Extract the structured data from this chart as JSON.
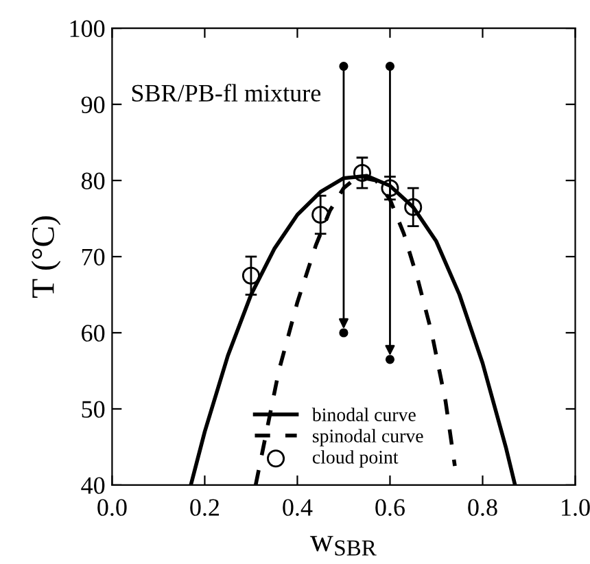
{
  "chart_data": {
    "type": "line",
    "xlabel": "w$_{SBR}$",
    "ylabel": "T (°C)",
    "xlim": [
      0.0,
      1.0
    ],
    "ylim": [
      40,
      100
    ],
    "xticks": [
      {
        "value": 0,
        "label": "0.0"
      },
      {
        "value": 0.2,
        "label": "0.2"
      },
      {
        "value": 0.4,
        "label": "0.4"
      },
      {
        "value": 0.6,
        "label": "0.6"
      },
      {
        "value": 0.8,
        "label": "0.8"
      },
      {
        "value": 1,
        "label": "1.0"
      }
    ],
    "yticks": [
      40,
      50,
      60,
      70,
      80,
      90,
      100
    ],
    "grid": false,
    "legend": "bottom",
    "annotations": [
      "SBR/PB-fl mixture"
    ],
    "series": [
      {
        "name": "binodal curve",
        "line_style": "solid",
        "marker": "none",
        "color": "#000000",
        "x": [
          0.17,
          0.2,
          0.25,
          0.3,
          0.35,
          0.4,
          0.45,
          0.5,
          0.55,
          0.6,
          0.65,
          0.7,
          0.75,
          0.8,
          0.85,
          0.87
        ],
        "values": [
          40,
          47,
          57,
          65,
          71,
          75.5,
          78.5,
          80.3,
          80.6,
          79.3,
          76.5,
          72,
          65,
          56,
          45,
          40
        ]
      },
      {
        "name": "spinodal curve",
        "line_style": "dashed",
        "marker": "none",
        "color": "#000000",
        "x": [
          0.31,
          0.33,
          0.36,
          0.4,
          0.44,
          0.47,
          0.5,
          0.53,
          0.57,
          0.6,
          0.63,
          0.66,
          0.69,
          0.72,
          0.74
        ],
        "values": [
          40,
          46,
          55,
          64,
          71.5,
          76,
          79,
          80.5,
          80,
          77.5,
          73,
          67,
          60,
          51,
          42.5
        ]
      },
      {
        "name": "cloud point",
        "type": "scatter",
        "marker": "circle",
        "color": "#000000",
        "x": [
          0.3,
          0.45,
          0.54,
          0.6,
          0.65
        ],
        "values": [
          67.5,
          75.5,
          81,
          79,
          76.5
        ],
        "errors": [
          2.5,
          2.5,
          2,
          1.5,
          2.5
        ]
      },
      {
        "type": "scatter",
        "marker": "circle",
        "color": "#000000",
        "x": [
          0.5,
          0.5,
          0.6,
          0.6
        ],
        "values": [
          95,
          60,
          95,
          56.5
        ]
      }
    ]
  }
}
